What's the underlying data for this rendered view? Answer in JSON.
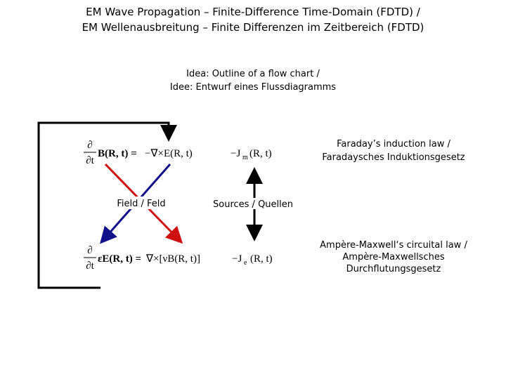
{
  "title": [
    "EM Wave Propagation – Finite-Difference Time-Domain (FDTD) /",
    "EM Wellenausbreitung – Finite Differenzen im Zeitbereich (FDTD)"
  ],
  "subtitle": [
    "Idea: Outline of a flow chart /",
    "Idee: Entwurf eines Flussdiagramms"
  ],
  "faraday": {
    "label": [
      "Faraday’s induction law /",
      "Faradaysches Induktionsgesetz"
    ],
    "equation": {
      "d_num": "∂",
      "d_den": "∂t",
      "lhs": "B(R, t)  =",
      "rhs": "−∇×E(R, t)",
      "source": "−J",
      "source_sub": "m",
      "source_arg": "(R, t)"
    }
  },
  "ampere": {
    "label": [
      "Ampère-Maxwell‘s circuital law /",
      "Ampère-Maxwellsches",
      "Durchflutungsgesetz"
    ],
    "equation": {
      "d_num": "∂",
      "d_den": "∂t",
      "lhs": "εE(R, t) =",
      "rhs": "∇×[νB(R, t)]",
      "source": "−J",
      "source_sub": "e",
      "source_arg": "(R, t)"
    }
  },
  "field_label": "Field / Feld",
  "sources_label": "Sources / Quellen"
}
